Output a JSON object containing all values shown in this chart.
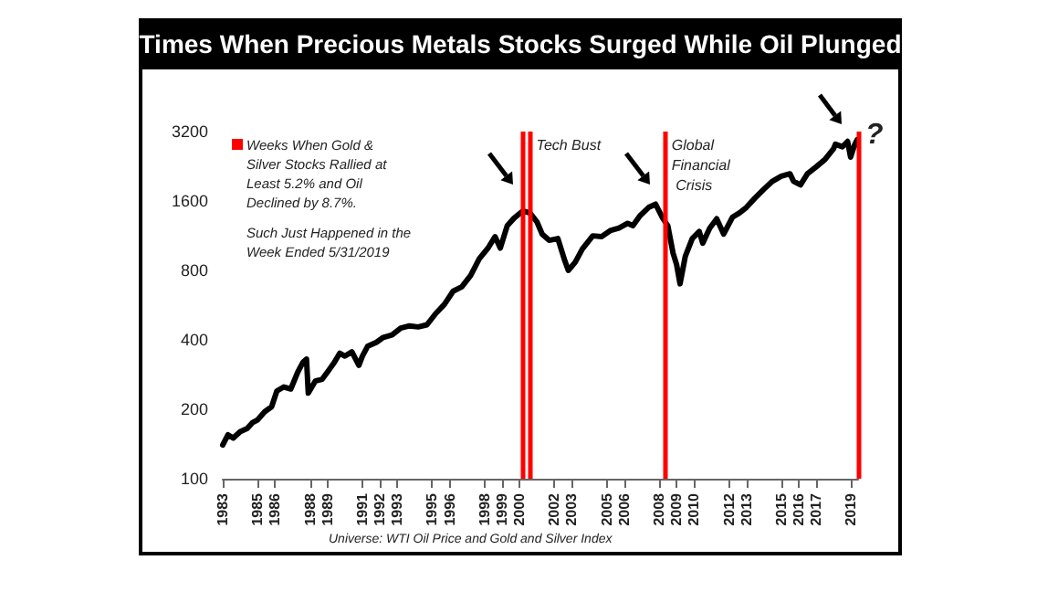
{
  "chart_data": {
    "type": "line",
    "title": "Times When Precious Metals Stocks Surged While Oil Plunged",
    "series": [
      {
        "color": "#000000",
        "x": [
          1983.0,
          1983.3,
          1983.6,
          1984.0,
          1984.4,
          1984.7,
          1985.0,
          1985.4,
          1985.8,
          1986.1,
          1986.5,
          1986.9,
          1987.3,
          1987.6,
          1987.8,
          1987.9,
          1988.3,
          1988.7,
          1989.0,
          1989.4,
          1989.7,
          1990.0,
          1990.4,
          1990.8,
          1991.0,
          1991.3,
          1991.8,
          1992.2,
          1992.7,
          1993.2,
          1993.7,
          1994.2,
          1994.7,
          1995.2,
          1995.7,
          1996.2,
          1996.7,
          1997.2,
          1997.7,
          1998.2,
          1998.6,
          1998.9,
          1999.3,
          1999.7,
          2000.2,
          2000.6,
          2001.0,
          2001.3,
          2001.7,
          2002.2,
          2002.6,
          2002.8,
          2003.2,
          2003.6,
          2004.2,
          2004.7,
          2005.2,
          2005.7,
          2006.2,
          2006.5,
          2006.9,
          2007.4,
          2007.8,
          2008.2,
          2008.5,
          2008.8,
          2009.0,
          2009.2,
          2009.5,
          2009.9,
          2010.3,
          2010.5,
          2010.9,
          2011.3,
          2011.7,
          2012.2,
          2012.6,
          2013.0,
          2013.5,
          2014.0,
          2014.5,
          2015.0,
          2015.5,
          2015.7,
          2016.1,
          2016.5,
          2017.0,
          2017.5,
          2018.0,
          2018.1,
          2018.5,
          2018.8,
          2018.97,
          2019.2,
          2019.35,
          2019.4
        ],
        "values": [
          140,
          155,
          150,
          160,
          165,
          175,
          180,
          195,
          205,
          240,
          250,
          245,
          290,
          320,
          330,
          235,
          265,
          270,
          290,
          320,
          350,
          340,
          355,
          310,
          340,
          375,
          390,
          410,
          420,
          450,
          460,
          455,
          465,
          520,
          570,
          650,
          680,
          760,
          900,
          1000,
          1120,
          1000,
          1250,
          1350,
          1450,
          1420,
          1300,
          1150,
          1080,
          1100,
          880,
          800,
          870,
          990,
          1130,
          1120,
          1190,
          1220,
          1280,
          1250,
          1380,
          1500,
          1550,
          1350,
          1250,
          950,
          850,
          700,
          920,
          1100,
          1180,
          1050,
          1220,
          1340,
          1150,
          1360,
          1420,
          1500,
          1650,
          1800,
          1950,
          2050,
          2100,
          1950,
          1880,
          2100,
          2250,
          2420,
          2700,
          2820,
          2750,
          2900,
          2480,
          2800,
          2950,
          2800
        ]
      }
    ],
    "xlim": [
      1983,
      2019.4
    ],
    "xticks": [
      1983,
      1985,
      1986,
      1988,
      1989,
      1991,
      1992,
      1993,
      1995,
      1996,
      1998,
      1999,
      2000,
      2002,
      2003,
      2005,
      2006,
      2008,
      2009,
      2010,
      2012,
      2013,
      2015,
      2016,
      2017,
      2019
    ],
    "ylim": [
      100,
      3200
    ],
    "yticks": [
      100,
      200,
      400,
      800,
      1600,
      3200
    ],
    "log": true,
    "grid": false,
    "marker": "none",
    "ref_lines": [
      {
        "axis": "x",
        "value": 2000.2,
        "color": "#ff0000"
      },
      {
        "axis": "x",
        "value": 2000.55,
        "color": "#ff0000",
        "label": "Tech Bust"
      },
      {
        "axis": "x",
        "value": 2008.3,
        "color": "#ff0000",
        "label": "Global Financial Crisis"
      },
      {
        "axis": "x",
        "value": 2019.4,
        "color": "#ff0000",
        "label": "?"
      }
    ],
    "annotations": [
      "Weeks When Gold & Silver Stocks Rallied at Least 5.2% and Oil Declined by 8.7%.",
      "Such Just Happened in the Week Ended 5/31/2019",
      "Universe: WTI Oil Price and Gold and Silver Index"
    ]
  }
}
